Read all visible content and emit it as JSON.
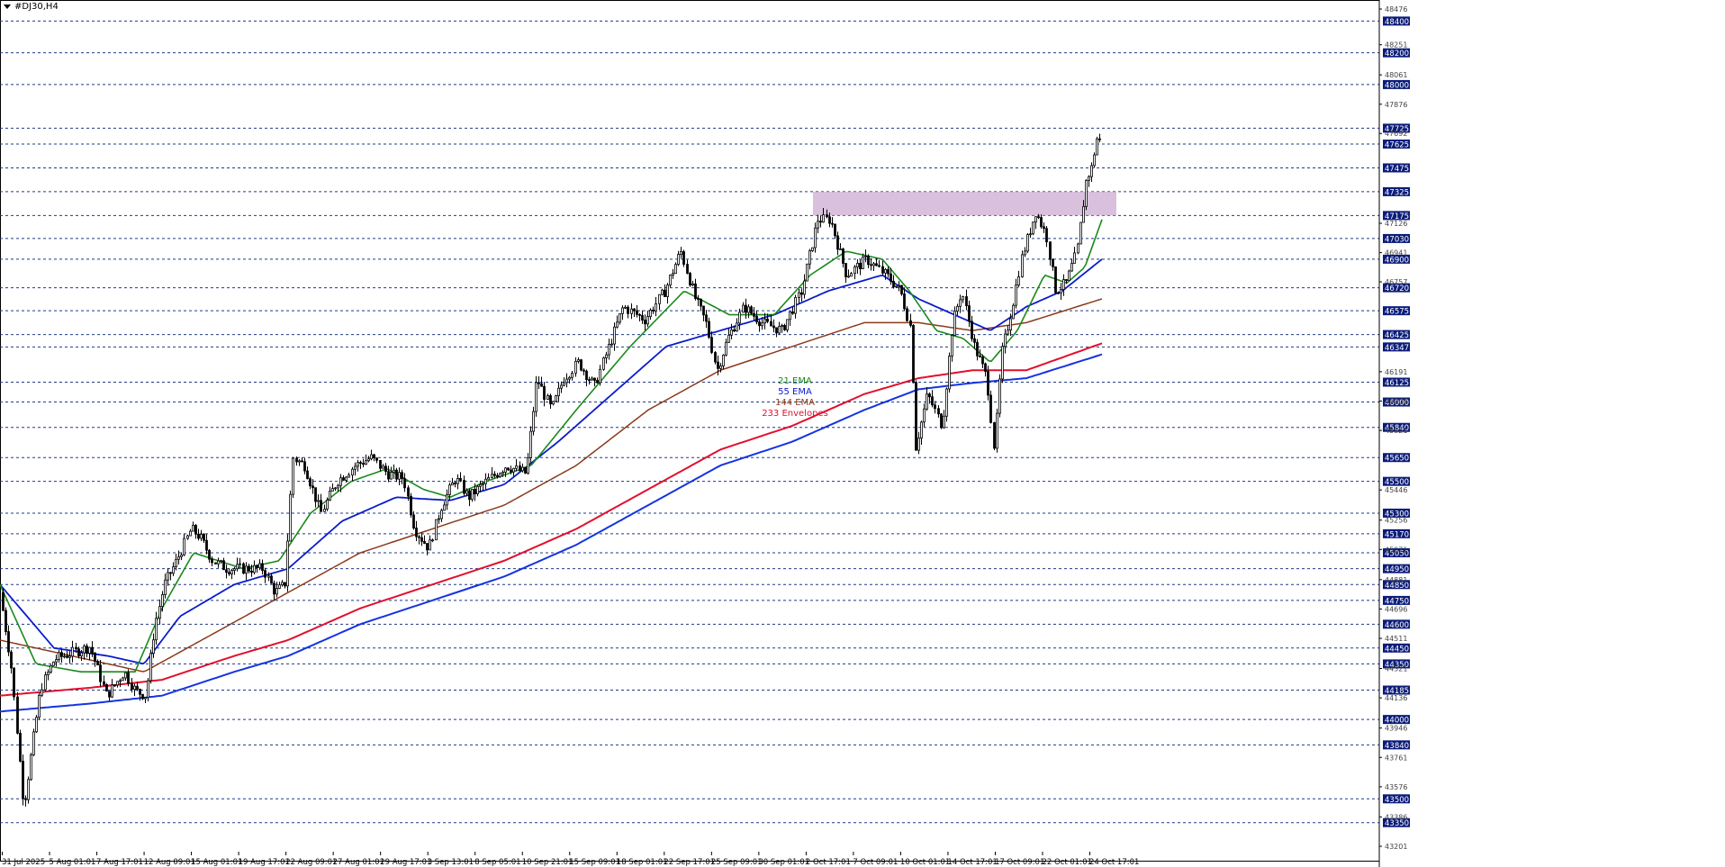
{
  "symbol_title": "#DJ30,H4",
  "colors": {
    "ema21": "#1a8a1a",
    "ema55": "#0a1ccc",
    "ema144": "#8b3a1a",
    "env_upper": "#e0102e",
    "env_lower": "#1434e0",
    "zone": "#c9a6cf",
    "grid": "#1f3a8a",
    "tag_bg": "#0b1c7a"
  },
  "chart_data": {
    "type": "candlestick",
    "title": "#DJ30,H4",
    "ylim": [
      43201,
      48476
    ],
    "grid": "horizontal dashed",
    "price_ticks_major": [
      48400,
      48200,
      48000,
      47725,
      47625,
      47475,
      47325,
      47175,
      47030,
      46900,
      46720,
      46575,
      46425,
      46347,
      46125,
      46000,
      45840,
      45650,
      45500,
      45300,
      45170,
      45050,
      44950,
      44850,
      44750,
      44600,
      44450,
      44350,
      44185,
      44000,
      43840,
      43500,
      43350
    ],
    "price_ticks_minor": [
      48476,
      48251,
      48061,
      47876,
      47692,
      47126,
      46941,
      46757,
      46191,
      46006,
      45821,
      45446,
      45256,
      45071,
      44881,
      44696,
      44511,
      44321,
      44136,
      43946,
      43761,
      43576,
      43386,
      43201
    ],
    "time_labels": [
      "31 Jul 2025",
      "5 Aug 01:01",
      "7 Aug 17:01",
      "12 Aug 09:01",
      "15 Aug 01:01",
      "19 Aug 17:01",
      "22 Aug 09:01",
      "27 Aug 01:01",
      "29 Aug 17:01",
      "3 Sep 13:01",
      "8 Sep 05:01",
      "10 Sep 21:01",
      "15 Sep 09:01",
      "18 Sep 01:01",
      "22 Sep 17:01",
      "25 Sep 09:01",
      "30 Sep 01:01",
      "2 Oct 17:01",
      "7 Oct 09:01",
      "10 Oct 01:01",
      "14 Oct 17:01",
      "17 Oct 09:01",
      "22 Oct 01:01",
      "24 Oct 17:01"
    ],
    "legend": [
      {
        "label": "21 EMA",
        "color": "#1a8a1a"
      },
      {
        "label": "55 EMA",
        "color": "#0a1ccc"
      },
      {
        "label": "144 EMA",
        "color": "#8b3a1a"
      },
      {
        "label": "233 Envelopes",
        "color": "#e0102e"
      }
    ],
    "resistance_zone": {
      "price_low": 47175,
      "price_high": 47325,
      "label": ""
    },
    "price_path": [
      [
        0,
        44800
      ],
      [
        12,
        44350
      ],
      [
        26,
        43450
      ],
      [
        45,
        44200
      ],
      [
        60,
        44380
      ],
      [
        80,
        44420
      ],
      [
        100,
        44460
      ],
      [
        118,
        44150
      ],
      [
        138,
        44300
      ],
      [
        150,
        44180
      ],
      [
        162,
        44150
      ],
      [
        172,
        44600
      ],
      [
        182,
        44850
      ],
      [
        196,
        45000
      ],
      [
        212,
        45200
      ],
      [
        222,
        45150
      ],
      [
        236,
        45000
      ],
      [
        252,
        44950
      ],
      [
        272,
        44950
      ],
      [
        292,
        44950
      ],
      [
        305,
        44800
      ],
      [
        316,
        44850
      ],
      [
        325,
        45650
      ],
      [
        338,
        45600
      ],
      [
        356,
        45300
      ],
      [
        374,
        45500
      ],
      [
        394,
        45600
      ],
      [
        412,
        45650
      ],
      [
        430,
        45550
      ],
      [
        448,
        45520
      ],
      [
        460,
        45200
      ],
      [
        476,
        45080
      ],
      [
        490,
        45350
      ],
      [
        506,
        45520
      ],
      [
        520,
        45400
      ],
      [
        540,
        45500
      ],
      [
        562,
        45600
      ],
      [
        584,
        45550
      ],
      [
        596,
        46150
      ],
      [
        612,
        45950
      ],
      [
        626,
        46150
      ],
      [
        642,
        46250
      ],
      [
        660,
        46100
      ],
      [
        676,
        46350
      ],
      [
        692,
        46600
      ],
      [
        716,
        46520
      ],
      [
        738,
        46700
      ],
      [
        756,
        46950
      ],
      [
        772,
        46650
      ],
      [
        784,
        46500
      ],
      [
        796,
        46200
      ],
      [
        808,
        46400
      ],
      [
        826,
        46600
      ],
      [
        846,
        46500
      ],
      [
        868,
        46450
      ],
      [
        890,
        46700
      ],
      [
        908,
        47150
      ],
      [
        922,
        47150
      ],
      [
        940,
        46800
      ],
      [
        962,
        46900
      ],
      [
        984,
        46800
      ],
      [
        1000,
        46700
      ],
      [
        1012,
        46450
      ],
      [
        1016,
        45700
      ],
      [
        1030,
        46050
      ],
      [
        1046,
        45850
      ],
      [
        1058,
        46500
      ],
      [
        1068,
        46700
      ],
      [
        1082,
        46350
      ],
      [
        1096,
        46150
      ],
      [
        1104,
        45700
      ],
      [
        1112,
        46300
      ],
      [
        1124,
        46600
      ],
      [
        1134,
        46900
      ],
      [
        1150,
        47200
      ],
      [
        1162,
        47050
      ],
      [
        1172,
        46700
      ],
      [
        1184,
        46750
      ],
      [
        1196,
        46950
      ],
      [
        1206,
        47400
      ],
      [
        1212,
        47475
      ],
      [
        1218,
        47660
      ],
      [
        1224,
        47630
      ]
    ],
    "ema21": [
      [
        0,
        44850
      ],
      [
        40,
        44350
      ],
      [
        90,
        44300
      ],
      [
        150,
        44300
      ],
      [
        180,
        44700
      ],
      [
        215,
        45050
      ],
      [
        270,
        44950
      ],
      [
        310,
        45000
      ],
      [
        345,
        45300
      ],
      [
        390,
        45500
      ],
      [
        430,
        45580
      ],
      [
        470,
        45450
      ],
      [
        500,
        45400
      ],
      [
        540,
        45500
      ],
      [
        590,
        45600
      ],
      [
        640,
        45950
      ],
      [
        700,
        46350
      ],
      [
        760,
        46700
      ],
      [
        810,
        46550
      ],
      [
        860,
        46550
      ],
      [
        900,
        46800
      ],
      [
        940,
        46950
      ],
      [
        980,
        46900
      ],
      [
        1010,
        46700
      ],
      [
        1040,
        46450
      ],
      [
        1070,
        46400
      ],
      [
        1100,
        46250
      ],
      [
        1130,
        46450
      ],
      [
        1160,
        46800
      ],
      [
        1185,
        46750
      ],
      [
        1205,
        46850
      ],
      [
        1224,
        47150
      ]
    ],
    "ema55": [
      [
        0,
        44850
      ],
      [
        60,
        44450
      ],
      [
        120,
        44400
      ],
      [
        160,
        44350
      ],
      [
        200,
        44650
      ],
      [
        260,
        44850
      ],
      [
        320,
        44950
      ],
      [
        380,
        45250
      ],
      [
        440,
        45400
      ],
      [
        500,
        45380
      ],
      [
        560,
        45480
      ],
      [
        620,
        45750
      ],
      [
        680,
        46050
      ],
      [
        740,
        46350
      ],
      [
        800,
        46450
      ],
      [
        860,
        46550
      ],
      [
        920,
        46700
      ],
      [
        980,
        46800
      ],
      [
        1020,
        46650
      ],
      [
        1060,
        46550
      ],
      [
        1100,
        46450
      ],
      [
        1140,
        46600
      ],
      [
        1180,
        46700
      ],
      [
        1224,
        46900
      ]
    ],
    "ema144": [
      [
        0,
        44500
      ],
      [
        80,
        44400
      ],
      [
        160,
        44300
      ],
      [
        240,
        44550
      ],
      [
        320,
        44800
      ],
      [
        400,
        45050
      ],
      [
        480,
        45200
      ],
      [
        560,
        45350
      ],
      [
        640,
        45600
      ],
      [
        720,
        45950
      ],
      [
        800,
        46200
      ],
      [
        880,
        46350
      ],
      [
        960,
        46500
      ],
      [
        1020,
        46500
      ],
      [
        1080,
        46450
      ],
      [
        1140,
        46500
      ],
      [
        1224,
        46650
      ]
    ],
    "env_upper": [
      [
        0,
        44150
      ],
      [
        100,
        44200
      ],
      [
        180,
        44250
      ],
      [
        260,
        44400
      ],
      [
        320,
        44500
      ],
      [
        400,
        44700
      ],
      [
        480,
        44850
      ],
      [
        560,
        45000
      ],
      [
        640,
        45200
      ],
      [
        720,
        45450
      ],
      [
        800,
        45700
      ],
      [
        880,
        45850
      ],
      [
        960,
        46050
      ],
      [
        1020,
        46150
      ],
      [
        1080,
        46200
      ],
      [
        1140,
        46200
      ],
      [
        1224,
        46370
      ]
    ],
    "env_lower": [
      [
        0,
        44050
      ],
      [
        100,
        44100
      ],
      [
        180,
        44150
      ],
      [
        260,
        44300
      ],
      [
        320,
        44400
      ],
      [
        400,
        44600
      ],
      [
        480,
        44750
      ],
      [
        560,
        44900
      ],
      [
        640,
        45100
      ],
      [
        720,
        45350
      ],
      [
        800,
        45600
      ],
      [
        880,
        45750
      ],
      [
        960,
        45950
      ],
      [
        1020,
        46080
      ],
      [
        1080,
        46120
      ],
      [
        1140,
        46150
      ],
      [
        1224,
        46300
      ]
    ]
  }
}
